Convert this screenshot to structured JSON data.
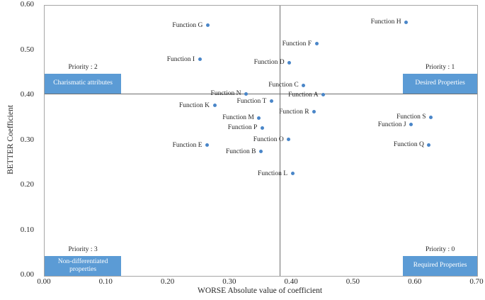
{
  "chart_data": {
    "type": "scatter",
    "title": "",
    "xlabel": "WORSE Absolute value of coefficient",
    "ylabel": "BETTER Coefficient",
    "xlim": [
      0,
      0.7
    ],
    "ylim": [
      0,
      0.6
    ],
    "grid": false,
    "legend": "none",
    "xticks": [
      {
        "value": 0.0,
        "label": "0.00"
      },
      {
        "value": 0.1,
        "label": "0.10"
      },
      {
        "value": 0.2,
        "label": "0.20"
      },
      {
        "value": 0.3,
        "label": "0.30"
      },
      {
        "value": 0.4,
        "label": "0.40"
      },
      {
        "value": 0.5,
        "label": "0.50"
      },
      {
        "value": 0.6,
        "label": "0.60"
      },
      {
        "value": 0.7,
        "label": "0.70"
      }
    ],
    "yticks": [
      {
        "value": 0.0,
        "label": "0.00"
      },
      {
        "value": 0.1,
        "label": "0.10"
      },
      {
        "value": 0.2,
        "label": "0.20"
      },
      {
        "value": 0.3,
        "label": "0.30"
      },
      {
        "value": 0.4,
        "label": "0.40"
      },
      {
        "value": 0.5,
        "label": "0.50"
      },
      {
        "value": 0.6,
        "label": "0.60"
      }
    ],
    "divider_x": 0.38,
    "divider_y": 0.405,
    "points": [
      {
        "label": "Function A",
        "x": 0.451,
        "y": 0.402
      },
      {
        "label": "Function B",
        "x": 0.35,
        "y": 0.276
      },
      {
        "label": "Function C",
        "x": 0.419,
        "y": 0.423
      },
      {
        "label": "Function D",
        "x": 0.396,
        "y": 0.474
      },
      {
        "label": "Function E",
        "x": 0.263,
        "y": 0.29
      },
      {
        "label": "Function F",
        "x": 0.44,
        "y": 0.515
      },
      {
        "label": "Function G",
        "x": 0.264,
        "y": 0.556
      },
      {
        "label": "Function H",
        "x": 0.585,
        "y": 0.563
      },
      {
        "label": "Function I",
        "x": 0.251,
        "y": 0.481
      },
      {
        "label": "Function J",
        "x": 0.593,
        "y": 0.336
      },
      {
        "label": "Function K",
        "x": 0.275,
        "y": 0.378
      },
      {
        "label": "Function L",
        "x": 0.401,
        "y": 0.227
      },
      {
        "label": "Function M",
        "x": 0.347,
        "y": 0.351
      },
      {
        "label": "Function N",
        "x": 0.326,
        "y": 0.404
      },
      {
        "label": "Function O",
        "x": 0.395,
        "y": 0.303
      },
      {
        "label": "Function P",
        "x": 0.352,
        "y": 0.329
      },
      {
        "label": "Function Q",
        "x": 0.622,
        "y": 0.291
      },
      {
        "label": "Function R",
        "x": 0.436,
        "y": 0.364
      },
      {
        "label": "Function S",
        "x": 0.625,
        "y": 0.352
      },
      {
        "label": "Function T",
        "x": 0.367,
        "y": 0.388
      }
    ],
    "quadrants": [
      {
        "name": "top-left",
        "priority": "Priority : 2",
        "label": "Charismatic attributes",
        "x0": 0.0,
        "x1": 0.124,
        "y0": 0.405,
        "y1": 0.449
      },
      {
        "name": "top-right",
        "priority": "Priority : 1",
        "label": "Desired Properties",
        "x0": 0.58,
        "x1": 0.7,
        "y0": 0.405,
        "y1": 0.449
      },
      {
        "name": "bottom-left",
        "priority": "Priority : 3",
        "label": "Non-differentiated properties",
        "x0": 0.0,
        "x1": 0.124,
        "y0": 0.0,
        "y1": 0.044
      },
      {
        "name": "bottom-right",
        "priority": "Priority : 0",
        "label": "Required Properties",
        "x0": 0.58,
        "x1": 0.7,
        "y0": 0.0,
        "y1": 0.044
      }
    ],
    "colors": {
      "dot": "#4a86c8",
      "quadrant_box": "#5b9bd5",
      "divider_line": "#6e6e6e",
      "plot_border": "#a6a6a6"
    }
  }
}
